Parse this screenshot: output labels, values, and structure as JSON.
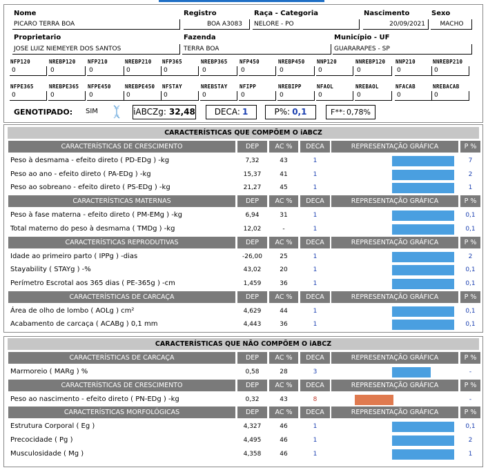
{
  "header": {
    "nome_label": "Nome",
    "nome": "PICARO TERRA BOA",
    "registro_label": "Registro",
    "registro": "BOA A3083",
    "raca_label": "Raça - Categoria",
    "raca": "NELORE - PO",
    "nascimento_label": "Nascimento",
    "nascimento": "20/09/2021",
    "sexo_label": "Sexo",
    "sexo": "MACHO",
    "proprietario_label": "Proprietario",
    "proprietario": "JOSE LUIZ NIEMEYER DOS SANTOS",
    "fazenda_label": "Fazenda",
    "fazenda": "TERRA BOA",
    "municipio_label": "Município - UF",
    "municipio": "GUARARAPES - SP"
  },
  "grid_row1": [
    {
      "label": "NFP120",
      "value": "0"
    },
    {
      "label": "NREBP120",
      "value": "0"
    },
    {
      "label": "NFP210",
      "value": "0"
    },
    {
      "label": "NREBP210",
      "value": "0"
    },
    {
      "label": "NFP365",
      "value": "0"
    },
    {
      "label": "NREBP365",
      "value": "0"
    },
    {
      "label": "NFP450",
      "value": "0"
    },
    {
      "label": "NREBP450",
      "value": "0"
    },
    {
      "label": "NNP120",
      "value": "0"
    },
    {
      "label": "NNREBP120",
      "value": "0"
    },
    {
      "label": "NNP210",
      "value": "0"
    },
    {
      "label": "NNREBP210",
      "value": "0"
    }
  ],
  "grid_row2": [
    {
      "label": "NFPE365",
      "value": "0"
    },
    {
      "label": "NREBPE365",
      "value": "0"
    },
    {
      "label": "NFPE450",
      "value": "0"
    },
    {
      "label": "NREBPE450",
      "value": "0"
    },
    {
      "label": "NFSTAY",
      "value": "0"
    },
    {
      "label": "NREBSTAY",
      "value": "0"
    },
    {
      "label": "NFIPP",
      "value": "0"
    },
    {
      "label": "NREBIPP",
      "value": "0"
    },
    {
      "label": "NFAOL",
      "value": "0"
    },
    {
      "label": "NREBAOL",
      "value": "0"
    },
    {
      "label": "NFACAB",
      "value": "0"
    },
    {
      "label": "NREBACAB",
      "value": "0"
    }
  ],
  "genotipado": {
    "label": "GENOTIPADO:",
    "value": "SIM",
    "icon": "dna-icon"
  },
  "stats": {
    "iabczg_label": "iABCZg:",
    "iabczg": "32,48",
    "deca_label": "DECA:",
    "deca": "1",
    "p_label": "P%:",
    "p": "0,1",
    "f_label": "F**:",
    "f": "0,78%"
  },
  "colors": {
    "bar_blue": "#4a9fe0",
    "bar_orange": "#e07a4f",
    "header_gray": "#7a7a7a",
    "title_gray": "#c6c6c6"
  },
  "columns": {
    "dep": "DEP",
    "ac": "AC %",
    "deca": "DECA",
    "rep": "REPRESENTAÇÃO GRÁFICA",
    "p": "P %"
  },
  "section1": {
    "title": "CARACTERÍSTICAS QUE COMPÕEM O iABCZ",
    "groups": [
      {
        "name": "CARACTERÍSTICAS DE CRESCIMENTO",
        "rows": [
          {
            "label": "Peso à desmama - efeito direto ( PD-EDg ) -kg",
            "dep": "7,32",
            "ac": "43",
            "deca": "1",
            "p": "7",
            "bar": 1.0,
            "color": "blue"
          },
          {
            "label": "Peso ao ano - efeito direto ( PA-EDg ) -kg",
            "dep": "15,37",
            "ac": "41",
            "deca": "1",
            "p": "2",
            "bar": 1.0,
            "color": "blue"
          },
          {
            "label": "Peso ao sobreano - efeito direto ( PS-EDg ) -kg",
            "dep": "21,27",
            "ac": "45",
            "deca": "1",
            "p": "1",
            "bar": 1.0,
            "color": "blue"
          }
        ]
      },
      {
        "name": "CARACTERÍSTICAS MATERNAS",
        "rows": [
          {
            "label": "Peso à fase materna - efeito direto ( PM-EMg ) -kg",
            "dep": "6,94",
            "ac": "31",
            "deca": "1",
            "p": "0,1",
            "bar": 1.0,
            "color": "blue"
          },
          {
            "label": "Total materno do peso à desmama ( TMDg ) -kg",
            "dep": "12,02",
            "ac": "-",
            "deca": "1",
            "p": "0,1",
            "bar": 1.0,
            "color": "blue"
          }
        ]
      },
      {
        "name": "CARACTERÍSTICAS REPRODUTIVAS",
        "rows": [
          {
            "label": "Idade ao primeiro parto ( IPPg ) -dias",
            "dep": "-26,00",
            "ac": "25",
            "deca": "1",
            "p": "2",
            "bar": 1.0,
            "color": "blue"
          },
          {
            "label": "Stayability ( STAYg ) -%",
            "dep": "43,02",
            "ac": "20",
            "deca": "1",
            "p": "0,1",
            "bar": 1.0,
            "color": "blue"
          },
          {
            "label": "Perímetro Escrotal aos 365 dias ( PE-365g ) -cm",
            "dep": "1,459",
            "ac": "36",
            "deca": "1",
            "p": "0,1",
            "bar": 1.0,
            "color": "blue"
          }
        ]
      },
      {
        "name": "CARACTERÍSTICAS DE CARCAÇA",
        "rows": [
          {
            "label": "Área de olho de lombo ( AOLg ) cm²",
            "dep": "4,629",
            "ac": "44",
            "deca": "1",
            "p": "0,1",
            "bar": 1.0,
            "color": "blue"
          },
          {
            "label": "Acabamento de carcaça ( ACABg ) 0,1 mm",
            "dep": "4,443",
            "ac": "36",
            "deca": "1",
            "p": "0,1",
            "bar": 1.0,
            "color": "blue"
          }
        ]
      }
    ]
  },
  "section2": {
    "title": "CARACTERÍSTICAS QUE NÃO COMPÕEM O iABCZ",
    "groups": [
      {
        "name": "CARACTERÍSTICAS DE CARCAÇA",
        "rows": [
          {
            "label": "Marmoreio ( MARg ) %",
            "dep": "0,58",
            "ac": "28",
            "deca": "3",
            "p": "-",
            "bar": 0.62,
            "color": "blue"
          }
        ]
      },
      {
        "name": "CARACTERÍSTICAS DE CRESCIMENTO",
        "rows": [
          {
            "label": "Peso ao nascimento - efeito direto ( PN-EDg ) -kg",
            "dep": "0,32",
            "ac": "43",
            "deca": "8",
            "p": "-",
            "bar": 0.62,
            "color": "orange"
          }
        ]
      },
      {
        "name": "CARACTERÍSTICAS MORFOLÓGICAS",
        "rows": [
          {
            "label": "Estrutura Corporal ( Eg )",
            "dep": "4,327",
            "ac": "46",
            "deca": "1",
            "p": "0,1",
            "bar": 1.0,
            "color": "blue"
          },
          {
            "label": "Precocidade ( Pg )",
            "dep": "4,495",
            "ac": "46",
            "deca": "1",
            "p": "2",
            "bar": 1.0,
            "color": "blue"
          },
          {
            "label": "Musculosidade ( Mg )",
            "dep": "4,358",
            "ac": "46",
            "deca": "1",
            "p": "1",
            "bar": 1.0,
            "color": "blue"
          }
        ]
      }
    ]
  }
}
